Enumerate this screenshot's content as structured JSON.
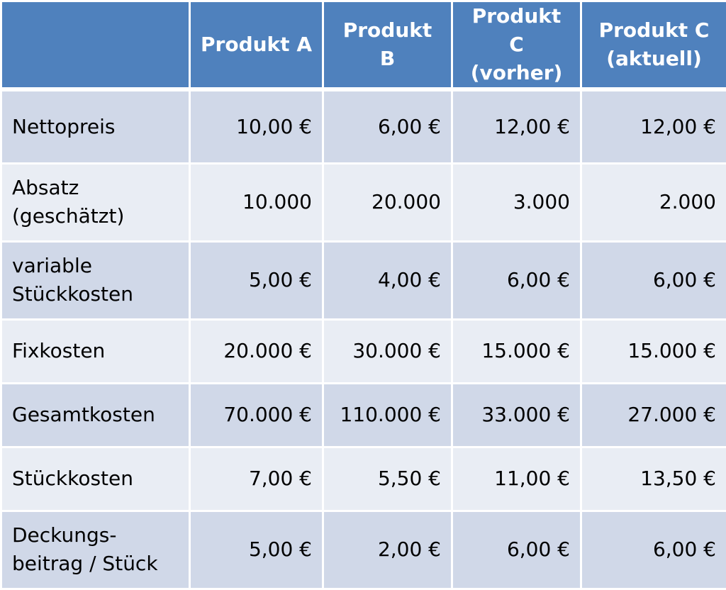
{
  "table": {
    "headers": [
      "",
      "Produkt A",
      "Produkt B",
      "Produkt C\n(vorher)",
      "Produkt C\n(aktuell)"
    ],
    "rows": [
      {
        "label": "Nettopreis",
        "values": [
          "10,00 €",
          "6,00 €",
          "12,00 €",
          "12,00 €"
        ]
      },
      {
        "label": "Absatz\n(geschätzt)",
        "values": [
          "10.000",
          "20.000",
          "3.000",
          "2.000"
        ]
      },
      {
        "label": "variable\nStückkosten",
        "values": [
          "5,00 €",
          "4,00 €",
          "6,00 €",
          "6,00 €"
        ]
      },
      {
        "label": "Fixkosten",
        "values": [
          "20.000 €",
          "30.000 €",
          "15.000 €",
          "15.000 €"
        ]
      },
      {
        "label": "Gesamtkosten",
        "values": [
          "70.000 €",
          "110.000 €",
          "33.000 €",
          "27.000 €"
        ]
      },
      {
        "label": "Stückkosten",
        "values": [
          "7,00 €",
          "5,50 €",
          "11,00 €",
          "13,50 €"
        ]
      },
      {
        "label": "Deckungs-\nbeitrag / Stück",
        "values": [
          "5,00 €",
          "2,00 €",
          "6,00 €",
          "6,00 €"
        ]
      }
    ]
  },
  "colors": {
    "header_bg": "#4f81bd",
    "row_dark": "#d0d8e8",
    "row_light": "#e9edf4"
  }
}
